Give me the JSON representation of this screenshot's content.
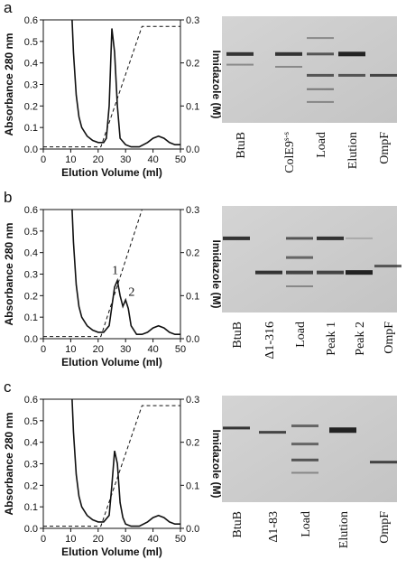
{
  "chart_data": [
    {
      "type": "line",
      "panel_label": "a",
      "xlabel": "Elution Volume (ml)",
      "ylabel": "Absorbance 280 nm",
      "y2label": "Imidazole (M)",
      "xlim": [
        0,
        50
      ],
      "xticks": [
        0,
        10,
        20,
        30,
        40,
        50
      ],
      "ylim": [
        0,
        0.6
      ],
      "yticks": [
        {
          "value": 0,
          "label": "0.0"
        },
        0.1,
        0.2,
        0.3,
        0.4,
        0.5,
        0.6
      ],
      "y2lim": [
        0,
        0.3
      ],
      "y2ticks": [
        {
          "value": 0,
          "label": "0.0"
        },
        0.1,
        0.2,
        0.3
      ],
      "annotations": [],
      "series": [
        {
          "color": "#111",
          "style": "solid",
          "x": [
            10.5,
            11,
            12,
            13,
            14,
            16,
            18,
            20,
            22,
            23,
            24,
            25,
            26,
            27,
            28,
            30,
            32,
            35,
            38,
            40,
            42,
            44,
            46,
            48,
            50
          ],
          "values": [
            0.6,
            0.45,
            0.25,
            0.15,
            0.1,
            0.06,
            0.04,
            0.03,
            0.03,
            0.05,
            0.2,
            0.56,
            0.45,
            0.2,
            0.05,
            0.02,
            0.01,
            0.01,
            0.03,
            0.05,
            0.06,
            0.05,
            0.03,
            0.02,
            0.02
          ]
        },
        {
          "color": "#111",
          "style": "dashed",
          "axis": "y2",
          "x": [
            0,
            21,
            36,
            50
          ],
          "values": [
            0.005,
            0.005,
            0.285,
            0.285
          ]
        }
      ]
    },
    {
      "type": "line",
      "panel_label": "b",
      "xlabel": "Elution Volume (ml)",
      "ylabel": "Absorbance 280 nm",
      "y2label": "Imidazole (M)",
      "xlim": [
        0,
        50
      ],
      "xticks": [
        0,
        10,
        20,
        30,
        40,
        50
      ],
      "ylim": [
        0,
        0.6
      ],
      "yticks": [
        {
          "value": 0,
          "label": "0.0"
        },
        0.1,
        0.2,
        0.3,
        0.4,
        0.5,
        0.6
      ],
      "y2lim": [
        0,
        0.3
      ],
      "y2ticks": [
        {
          "value": 0,
          "label": "0.0"
        },
        0.1,
        0.2,
        0.3
      ],
      "annotations": [
        "1",
        "2"
      ],
      "series": [
        {
          "color": "#111",
          "style": "solid",
          "x": [
            10.5,
            11,
            12,
            13,
            14,
            16,
            18,
            20,
            22,
            24,
            25,
            26,
            27,
            28,
            29,
            30,
            31,
            32,
            34,
            36,
            38,
            40,
            42,
            44,
            46,
            48,
            50
          ],
          "values": [
            0.6,
            0.45,
            0.25,
            0.15,
            0.1,
            0.06,
            0.04,
            0.03,
            0.03,
            0.06,
            0.15,
            0.24,
            0.27,
            0.2,
            0.15,
            0.18,
            0.14,
            0.06,
            0.02,
            0.02,
            0.03,
            0.05,
            0.06,
            0.05,
            0.03,
            0.02,
            0.02
          ]
        },
        {
          "color": "#111",
          "style": "dashed",
          "axis": "y2",
          "x": [
            0,
            21,
            36,
            50
          ],
          "values": [
            0.005,
            0.005,
            0.3,
            0.3
          ]
        }
      ]
    },
    {
      "type": "line",
      "panel_label": "c",
      "xlabel": "Elution Volume (ml)",
      "ylabel": "Absorbance 280 nm",
      "y2label": "Imidazole (M)",
      "xlim": [
        0,
        50
      ],
      "xticks": [
        0,
        10,
        20,
        30,
        40,
        50
      ],
      "ylim": [
        0,
        0.6
      ],
      "yticks": [
        {
          "value": 0,
          "label": "0.0"
        },
        0.1,
        0.2,
        0.3,
        0.4,
        0.5,
        0.6
      ],
      "y2lim": [
        0,
        0.3
      ],
      "y2ticks": [
        {
          "value": 0,
          "label": "0.0"
        },
        0.1,
        0.2,
        0.3
      ],
      "annotations": [],
      "series": [
        {
          "color": "#111",
          "style": "solid",
          "x": [
            10.5,
            11,
            12,
            13,
            14,
            16,
            18,
            20,
            22,
            24,
            25,
            26,
            27,
            28,
            29,
            30,
            32,
            35,
            38,
            40,
            42,
            44,
            46,
            48,
            50
          ],
          "values": [
            0.6,
            0.45,
            0.25,
            0.15,
            0.1,
            0.06,
            0.04,
            0.03,
            0.03,
            0.06,
            0.2,
            0.36,
            0.3,
            0.12,
            0.05,
            0.02,
            0.01,
            0.01,
            0.03,
            0.05,
            0.06,
            0.05,
            0.03,
            0.02,
            0.02
          ]
        },
        {
          "color": "#111",
          "style": "dashed",
          "axis": "y2",
          "x": [
            0,
            21,
            36,
            50
          ],
          "values": [
            0.005,
            0.005,
            0.285,
            0.285
          ]
        }
      ]
    }
  ],
  "gels": [
    {
      "lanes": [
        {
          "text": "BtuB"
        },
        {
          "text": "ColE9",
          "sup": "s-s"
        },
        {
          "text": "Load"
        },
        {
          "text": "Elution"
        },
        {
          "text": "OmpF"
        }
      ]
    },
    {
      "lanes": [
        {
          "text": "BtuB"
        },
        {
          "text": "Δ1-316"
        },
        {
          "text": "Load"
        },
        {
          "text": "Peak 1"
        },
        {
          "text": "Peak 2"
        },
        {
          "text": "OmpF"
        }
      ]
    },
    {
      "lanes": [
        {
          "text": "BtuB"
        },
        {
          "text": "Δ1-83"
        },
        {
          "text": "Load"
        },
        {
          "text": "Elution"
        },
        {
          "text": "OmpF"
        }
      ]
    }
  ]
}
